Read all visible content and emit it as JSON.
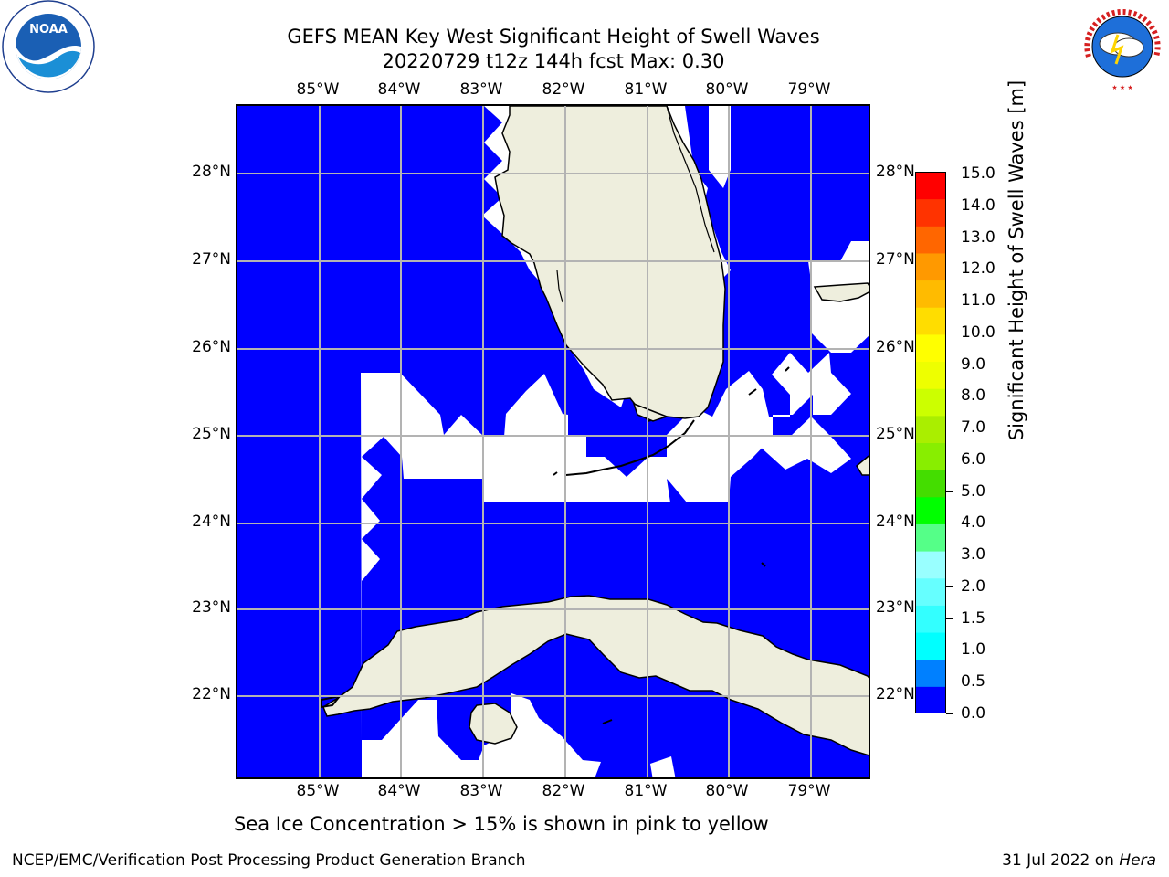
{
  "title": {
    "line1": "GEFS MEAN Key West Significant Height of Swell Waves",
    "line2": "20220729 t12z 144h fcst   Max: 0.30"
  },
  "map": {
    "lon_labels": [
      "85°W",
      "84°W",
      "83°W",
      "82°W",
      "81°W",
      "80°W",
      "79°W"
    ],
    "lat_labels": [
      "28°N",
      "27°N",
      "26°N",
      "25°N",
      "24°N",
      "23°N",
      "22°N"
    ],
    "ocean_color": "#0000ff",
    "land_color": "#eeeedd",
    "no_data_color": "#ffffff",
    "grid_color": "#b3b3b3"
  },
  "colorbar": {
    "label": "Significant Height of Swell Waves [m]",
    "ticks": [
      "0.0",
      "0.5",
      "1.0",
      "1.5",
      "2.0",
      "3.0",
      "4.0",
      "5.0",
      "6.0",
      "7.0",
      "8.0",
      "9.0",
      "10.0",
      "11.0",
      "12.0",
      "13.0",
      "14.0",
      "15.0"
    ],
    "colors": [
      "#0000ff",
      "#0080ff",
      "#00ffff",
      "#33ffff",
      "#66ffff",
      "#99ffff",
      "#55ff88",
      "#00ff00",
      "#44dd00",
      "#88ee00",
      "#aaee00",
      "#ccff00",
      "#eeff00",
      "#ffff00",
      "#ffdd00",
      "#ffbb00",
      "#ff9900",
      "#ff6600",
      "#ff3300",
      "#ff0000"
    ]
  },
  "footnote": "Sea Ice Concentration > 15% is shown in pink to yellow",
  "footer": {
    "left": "NCEP/EMC/Verification Post Processing Product Generation Branch",
    "date": "31 Jul 2022 on ",
    "system": "Hera"
  },
  "logos": {
    "left": "NOAA",
    "right": "NATIONAL WEATHER SERVICE"
  }
}
